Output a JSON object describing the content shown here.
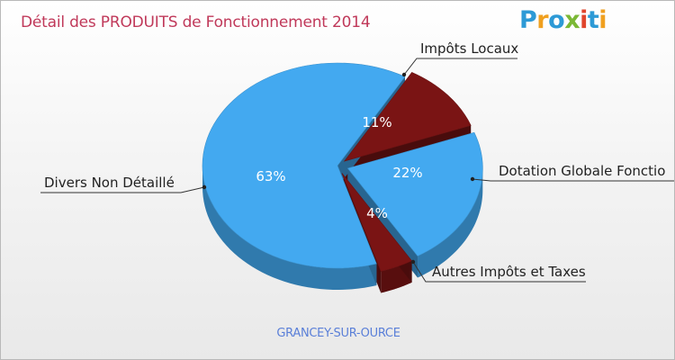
{
  "chart_data": {
    "type": "pie",
    "title": "Détail des PRODUITS de Fonctionnement 2014",
    "subtitle": "GRANCEY-SUR-OURCE",
    "slices": [
      {
        "label": "Impôts Locaux",
        "value": 11,
        "value_label": "11%",
        "color": "#7a1414"
      },
      {
        "label": "Dotation Globale Fonctionnement",
        "display_label": "Dotation Globale Fonctio",
        "value": 22,
        "value_label": "22%",
        "color": "#43a9f0"
      },
      {
        "label": "Autres Impôts et Taxes",
        "value": 4,
        "value_label": "4%",
        "color": "#7a1414"
      },
      {
        "label": "Divers Non Détaillé",
        "value": 63,
        "value_label": "63%",
        "color": "#43a9f0"
      }
    ]
  },
  "logo": {
    "letters": [
      "P",
      "r",
      "o",
      "x",
      "i",
      "t",
      "i"
    ]
  }
}
